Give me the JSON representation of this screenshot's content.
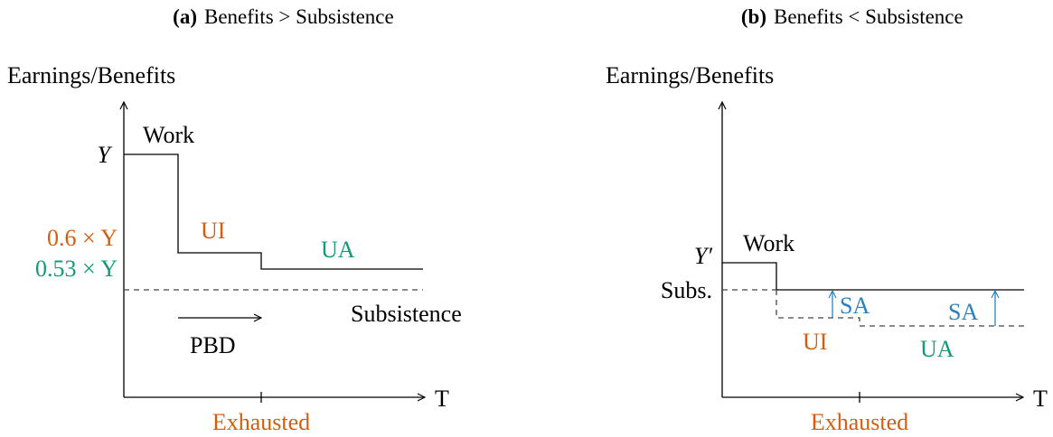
{
  "panels": [
    {
      "tag": "(a)",
      "title": "Benefits > Subsistence",
      "y_axis_label": "Earnings/Benefits",
      "x_axis_label": "T",
      "x_tick_label": "Exhausted",
      "level_labels": [
        "Y",
        "0.6 × Y",
        "0.53 × Y"
      ],
      "segment_labels": [
        "Work",
        "UI",
        "UA",
        "Subsistence",
        "PBD"
      ]
    },
    {
      "tag": "(b)",
      "title": "Benefits < Subsistence",
      "y_axis_label": "Earnings/Benefits",
      "x_axis_label": "T",
      "x_tick_label": "Exhausted",
      "level_labels": [
        "Y′",
        "Subs."
      ],
      "segment_labels": [
        "Work",
        "UI",
        "UA",
        "SA",
        "SA"
      ]
    }
  ]
}
